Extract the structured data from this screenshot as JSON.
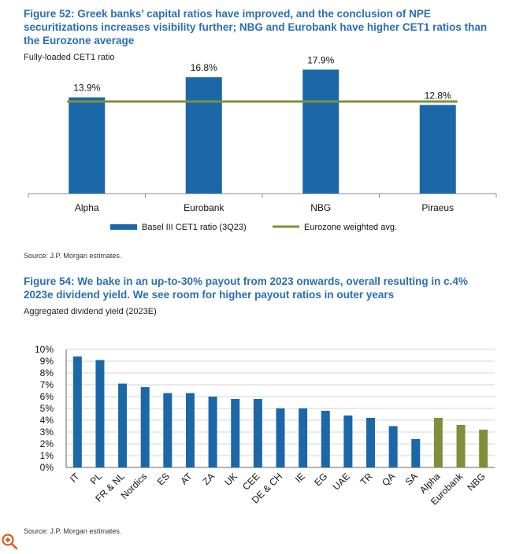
{
  "figure1": {
    "title": "Figure 52: Greek banks’ capital ratios have improved, and the conclusion of NPE securitizations increases visibility further; NBG and Eurobank have higher CET1 ratios than the Eurozone average",
    "subtitle": "Fully-loaded CET1 ratio",
    "source": "Source: J.P. Morgan estimates."
  },
  "figure2": {
    "title": "Figure 54: We bake in an up-to-30% payout from 2023 onwards, overall resulting in c.4% 2023e dividend yield. We see room for higher payout ratios in outer years",
    "subtitle": "Aggregated dividend yield (2023E)",
    "source": "Source: J.P. Morgan estimates."
  },
  "colors": {
    "blue": "#1b67a8",
    "olive": "#7f8f3a",
    "title": "#2a6fb3"
  },
  "icons": {
    "zoom": "zoom-in-icon"
  },
  "chart_data": [
    {
      "type": "bar",
      "title": "Fully-loaded CET1 ratio",
      "categories": [
        "Alpha",
        "Eurobank",
        "NBG",
        "Piraeus"
      ],
      "series": [
        {
          "name": "Basel III CET1 ratio (3Q23)",
          "values": [
            13.9,
            16.8,
            17.9,
            12.8
          ],
          "labels": [
            "13.9%",
            "16.8%",
            "17.9%",
            "12.8%"
          ]
        },
        {
          "name": "Eurozone weighted avg.",
          "type": "line",
          "value": 13.3
        }
      ],
      "ylim": [
        0,
        20
      ],
      "legend": "bottom"
    },
    {
      "type": "bar",
      "title": "Aggregated dividend yield (2023E)",
      "categories": [
        "IT",
        "PL",
        "FR & NL",
        "Nordics",
        "ES",
        "AT",
        "ZA",
        "UK",
        "CEE",
        "DE & CH",
        "IE",
        "EG",
        "UAE",
        "TR",
        "QA",
        "SA",
        "Alpha",
        "Eurobank",
        "NBG"
      ],
      "values": [
        9.4,
        9.1,
        7.1,
        6.8,
        6.3,
        6.3,
        6.0,
        5.8,
        5.8,
        5.0,
        5.0,
        4.8,
        4.4,
        4.2,
        3.5,
        2.4,
        4.2,
        3.6,
        3.2
      ],
      "highlight": [
        "Alpha",
        "Eurobank",
        "NBG"
      ],
      "yticks": [
        "0%",
        "1%",
        "2%",
        "3%",
        "4%",
        "5%",
        "6%",
        "7%",
        "8%",
        "9%",
        "10%"
      ],
      "ylim": [
        0,
        10
      ],
      "grid": true
    }
  ]
}
